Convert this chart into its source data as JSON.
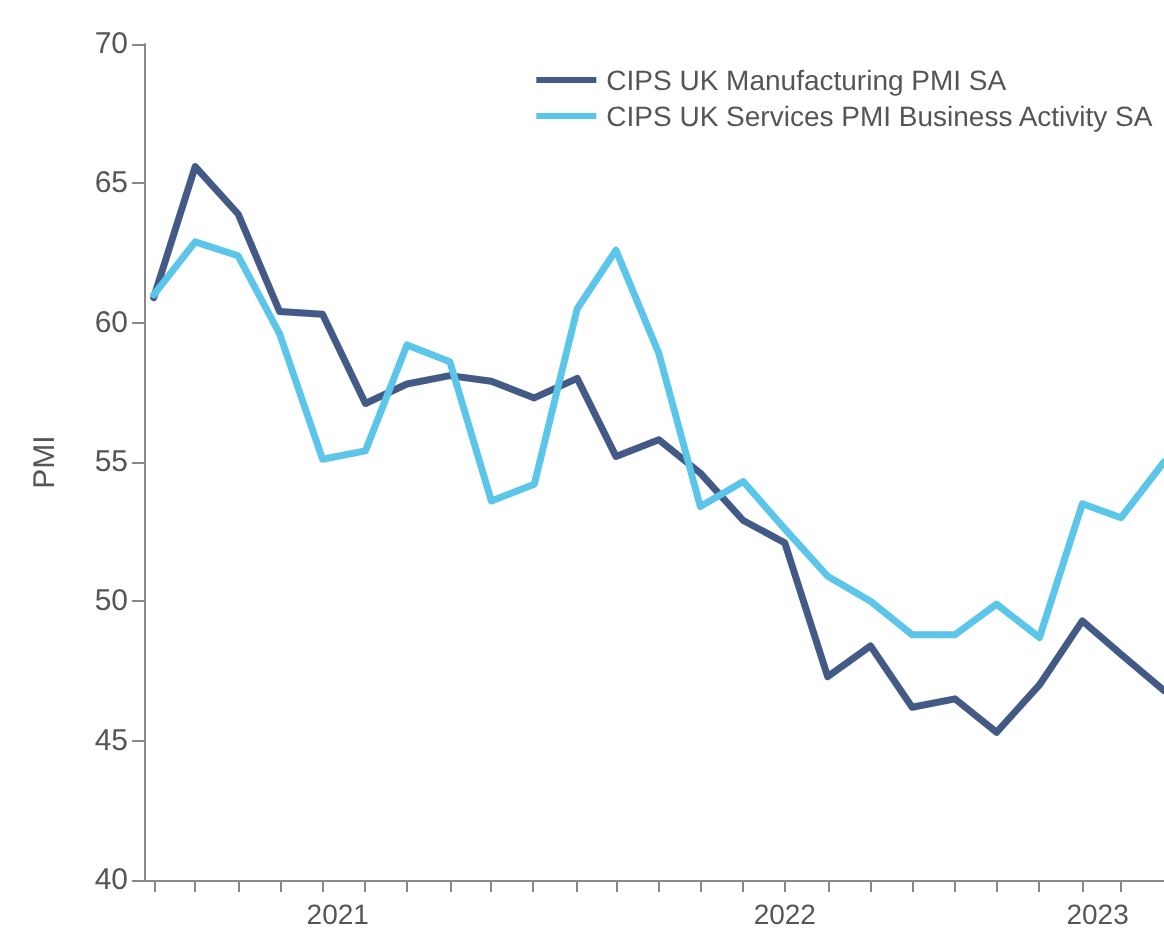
{
  "chart_data": {
    "type": "line",
    "ylabel": "PMI",
    "x": [
      "2021-04",
      "2021-05",
      "2021-06",
      "2021-07",
      "2021-08",
      "2021-09",
      "2021-10",
      "2021-11",
      "2021-12",
      "2022-01",
      "2022-02",
      "2022-03",
      "2022-04",
      "2022-05",
      "2022-06",
      "2022-07",
      "2022-08",
      "2022-09",
      "2022-10",
      "2022-11",
      "2022-12",
      "2023-01",
      "2023-02",
      "2023-03",
      "2023-04"
    ],
    "series": [
      {
        "name": "CIPS UK Manufacturing PMI SA",
        "color": "#435a87",
        "values": [
          60.9,
          65.6,
          63.9,
          60.4,
          60.3,
          57.1,
          57.8,
          58.1,
          57.9,
          57.3,
          58.0,
          55.2,
          55.8,
          54.6,
          52.9,
          52.1,
          47.3,
          48.4,
          46.2,
          46.5,
          45.3,
          47.0,
          49.3,
          48.1,
          46.8
        ]
      },
      {
        "name": "CIPS UK Services PMI Business Activity SA",
        "color": "#5bc5ea",
        "values": [
          61.0,
          62.9,
          62.4,
          59.6,
          55.1,
          55.4,
          59.2,
          58.6,
          53.6,
          54.2,
          60.5,
          62.6,
          58.9,
          53.4,
          54.3,
          52.6,
          50.9,
          50.0,
          48.8,
          48.8,
          49.9,
          48.7,
          53.5,
          53.0,
          55.0
        ]
      }
    ],
    "ylim": [
      40,
      70
    ],
    "yticks": [
      40,
      45,
      50,
      55,
      60,
      65,
      70
    ],
    "xlim": [
      "2021-03-25",
      "2023-04-01"
    ],
    "xticks": [
      {
        "value": "2021-04-01",
        "label": null
      },
      {
        "value": "2021-05-01",
        "label": null
      },
      {
        "value": "2021-06-01",
        "label": null
      },
      {
        "value": "2021-07-01",
        "label": null
      },
      {
        "value": "2021-08-01",
        "label": null
      },
      {
        "value": "2021-09-01",
        "label": null
      },
      {
        "value": "2021-10-01",
        "label": null
      },
      {
        "value": "2021-11-01",
        "label": null
      },
      {
        "value": "2021-12-01",
        "label": null
      },
      {
        "value": "2021-12-31",
        "label": null
      },
      {
        "value": "2022-02-01",
        "label": null
      },
      {
        "value": "2022-03-01",
        "label": null
      },
      {
        "value": "2022-04-01",
        "label": null
      },
      {
        "value": "2022-05-01",
        "label": null
      },
      {
        "value": "2022-06-01",
        "label": null
      },
      {
        "value": "2022-07-01",
        "label": null
      },
      {
        "value": "2022-08-01",
        "label": null
      },
      {
        "value": "2022-09-01",
        "label": null
      },
      {
        "value": "2022-10-01",
        "label": null
      },
      {
        "value": "2022-11-01",
        "label": null
      },
      {
        "value": "2022-12-01",
        "label": null
      },
      {
        "value": "2022-12-31",
        "label": null
      },
      {
        "value": "2023-02-01",
        "label": null
      },
      {
        "value": "2023-03-01",
        "label": null
      },
      {
        "value": "2021-08-12",
        "label": "2021"
      },
      {
        "value": "2022-07-01",
        "label": "2022"
      },
      {
        "value": "2023-02-12",
        "label": "2023"
      }
    ],
    "grid": false,
    "legend": "top right",
    "marker": "none",
    "line_style": "solid"
  }
}
